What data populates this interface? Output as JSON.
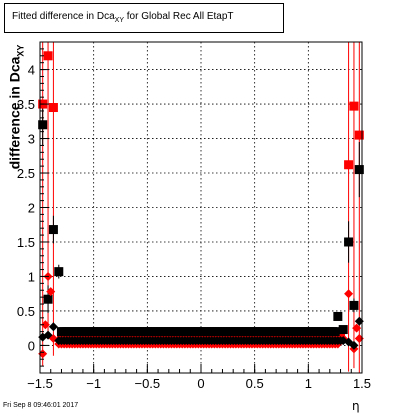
{
  "chart_title": {
    "prefix": "Fitted difference in Dca",
    "sub": "XY",
    "suffix": " for Global Rec All EtapT"
  },
  "ylabel": {
    "prefix": "difference in Dca",
    "sub": "XY"
  },
  "xlabel": "η",
  "footer": "Fri Sep  8 09:46:01 2017",
  "colors": {
    "red": "#ff0000",
    "black": "#000000"
  },
  "chart_data": {
    "type": "scatter",
    "xlim": [
      -1.5,
      1.5
    ],
    "ylim": [
      -0.4,
      4.4
    ],
    "grid": true,
    "xticks": [
      "-1.5",
      "-1",
      "-0.5",
      "0",
      "0.5",
      "1",
      "1.5"
    ],
    "xtick_values": [
      -1.5,
      -1,
      -0.5,
      0,
      0.5,
      1,
      1.5
    ],
    "yticks": [
      "0",
      "0.5",
      "1",
      "1.5",
      "2",
      "2.5",
      "3",
      "3.5",
      "4"
    ],
    "ytick_values": [
      0,
      0.5,
      1,
      1.5,
      2,
      2.5,
      3,
      3.5,
      4
    ],
    "series": [
      {
        "marker": "square",
        "color": "#ff0000",
        "points": [
          {
            "x": -1.475,
            "y": 3.5,
            "err": 3.8
          },
          {
            "x": -1.425,
            "y": 4.2,
            "err": 4.1
          },
          {
            "x": -1.375,
            "y": 3.45,
            "err": 3.6
          },
          {
            "x": 1.375,
            "y": 2.62,
            "err": 3.0
          },
          {
            "x": 1.425,
            "y": 3.47,
            "err": 3.8
          },
          {
            "x": 1.475,
            "y": 3.05,
            "err": 3.5
          }
        ],
        "flat_band": {
          "x_from": -1.3,
          "x_to": 1.3,
          "step": 0.025,
          "y": 0.18
        }
      },
      {
        "marker": "square",
        "color": "#000000",
        "points": [
          {
            "x": -1.475,
            "y": 3.2,
            "err": 0.3
          },
          {
            "x": -1.425,
            "y": 0.67,
            "err": 0.2
          },
          {
            "x": -1.375,
            "y": 1.68,
            "err": 0.2
          },
          {
            "x": -1.325,
            "y": 1.07,
            "err": 0.1
          },
          {
            "x": 1.275,
            "y": 0.42,
            "err": 0.05
          },
          {
            "x": 1.325,
            "y": 0.23,
            "err": 0.05
          },
          {
            "x": 1.375,
            "y": 1.5,
            "err": 0.3
          },
          {
            "x": 1.425,
            "y": 0.58,
            "err": 0.1
          },
          {
            "x": 1.475,
            "y": 2.55,
            "err": 0.4
          }
        ],
        "flat_band": {
          "x_from": -1.3,
          "x_to": 1.25,
          "step": 0.025,
          "y": 0.2
        }
      },
      {
        "marker": "diamond",
        "color": "#ff0000",
        "points": [
          {
            "x": -1.475,
            "y": -0.12,
            "err": 0
          },
          {
            "x": -1.45,
            "y": 0.3,
            "err": 0
          },
          {
            "x": -1.425,
            "y": 1.0,
            "err": 0
          },
          {
            "x": -1.4,
            "y": 0.78,
            "err": 0
          },
          {
            "x": -1.375,
            "y": 0.1,
            "err": 0
          },
          {
            "x": 1.325,
            "y": 0.1,
            "err": 0
          },
          {
            "x": 1.375,
            "y": 0.75,
            "err": 0
          },
          {
            "x": 1.425,
            "y": -0.05,
            "err": 0
          },
          {
            "x": 1.45,
            "y": 0.25,
            "err": 0
          },
          {
            "x": 1.475,
            "y": 0.1,
            "err": 0
          }
        ],
        "flat_band": {
          "x_from": -1.325,
          "x_to": 1.275,
          "step": 0.025,
          "y": 0.02
        }
      },
      {
        "marker": "diamond",
        "color": "#000000",
        "points": [
          {
            "x": -1.475,
            "y": 0.12,
            "err": 0
          },
          {
            "x": -1.425,
            "y": 0.15,
            "err": 0
          },
          {
            "x": -1.375,
            "y": 0.27,
            "err": 0
          },
          {
            "x": 1.375,
            "y": 0.05,
            "err": 0
          },
          {
            "x": 1.425,
            "y": 0.0,
            "err": 0
          },
          {
            "x": 1.475,
            "y": 0.35,
            "err": 0
          }
        ],
        "flat_band": {
          "x_from": -1.325,
          "x_to": 1.325,
          "step": 0.025,
          "y": 0.07
        }
      }
    ]
  }
}
